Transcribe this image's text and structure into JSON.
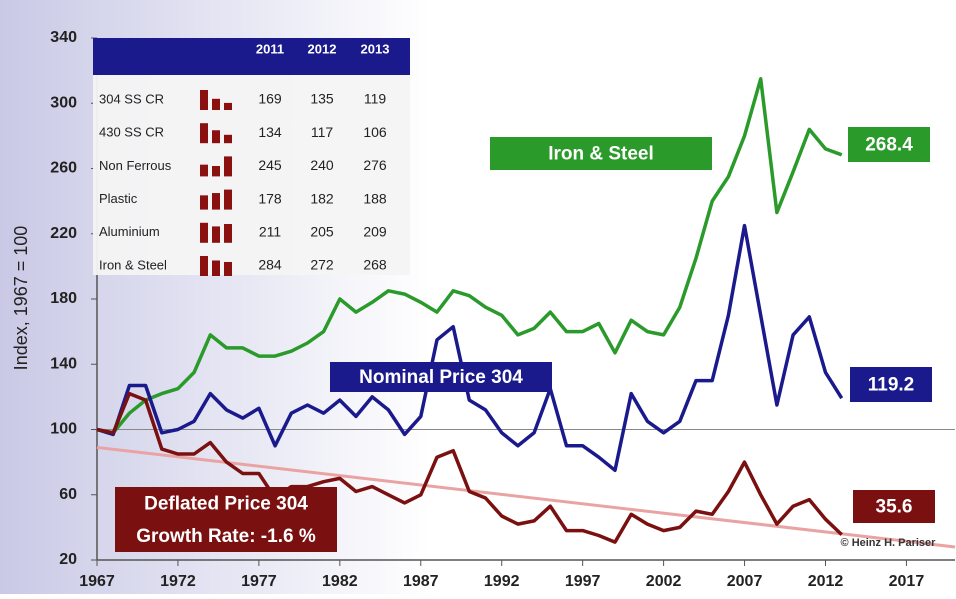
{
  "chart_data": {
    "type": "line",
    "ylabel": "Index, 1967 = 100",
    "xlim": [
      1967,
      2020
    ],
    "ylim": [
      20,
      340
    ],
    "xticks": [
      1967,
      1972,
      1977,
      1982,
      1987,
      1992,
      1997,
      2002,
      2007,
      2012,
      2017
    ],
    "yticks": [
      20,
      60,
      100,
      140,
      180,
      220,
      260,
      300,
      340
    ],
    "x": [
      1967,
      1968,
      1969,
      1970,
      1971,
      1972,
      1973,
      1974,
      1975,
      1976,
      1977,
      1978,
      1979,
      1980,
      1981,
      1982,
      1983,
      1984,
      1985,
      1986,
      1987,
      1988,
      1989,
      1990,
      1991,
      1992,
      1993,
      1994,
      1995,
      1996,
      1997,
      1998,
      1999,
      2000,
      2001,
      2002,
      2003,
      2004,
      2005,
      2006,
      2007,
      2008,
      2009,
      2010,
      2011,
      2012,
      2013
    ],
    "series": [
      {
        "name": "Iron & Steel",
        "color": "#2a9a2a",
        "values": [
          100,
          98,
          110,
          118,
          122,
          125,
          135,
          158,
          150,
          150,
          145,
          145,
          148,
          153,
          160,
          180,
          172,
          178,
          185,
          183,
          178,
          172,
          185,
          182,
          175,
          170,
          158,
          162,
          172,
          160,
          160,
          165,
          147,
          167,
          160,
          158,
          175,
          205,
          240,
          255,
          280,
          315,
          233,
          258,
          284,
          272,
          268.4
        ]
      },
      {
        "name": "Nominal Price 304",
        "color": "#1a1a8c",
        "values": [
          100,
          97,
          127,
          127,
          98,
          100,
          105,
          122,
          112,
          107,
          113,
          90,
          110,
          115,
          110,
          118,
          108,
          120,
          112,
          97,
          108,
          155,
          163,
          118,
          112,
          98,
          90,
          98,
          125,
          90,
          90,
          83,
          75,
          122,
          105,
          98,
          105,
          130,
          130,
          170,
          225,
          170,
          115,
          158,
          169,
          135,
          119.2
        ]
      },
      {
        "name": "Deflated Price 304",
        "color": "#7a1010",
        "values": [
          100,
          98,
          122,
          118,
          88,
          85,
          85,
          92,
          80,
          73,
          73,
          58,
          65,
          65,
          68,
          70,
          62,
          65,
          60,
          55,
          60,
          83,
          87,
          62,
          58,
          47,
          42,
          44,
          53,
          38,
          38,
          35,
          31,
          48,
          42,
          38,
          40,
          50,
          48,
          62,
          80,
          60,
          42,
          53,
          57,
          45,
          35.6
        ]
      }
    ],
    "trend": {
      "x": [
        1967,
        2020
      ],
      "values": [
        89,
        28
      ],
      "color": "#e9a3a3"
    },
    "annotation": "Growth Rate: -1.6 %",
    "credit": "© Heinz H. Pariser",
    "table": {
      "columns": [
        "2011",
        "2012",
        "2013"
      ],
      "bar_color": "#8b1010",
      "rows": [
        {
          "label": "304 SS CR",
          "values": [
            169,
            135,
            119
          ]
        },
        {
          "label": "430 SS CR",
          "values": [
            134,
            117,
            106
          ]
        },
        {
          "label": "Non Ferrous",
          "values": [
            245,
            240,
            276
          ]
        },
        {
          "label": "Plastic",
          "values": [
            178,
            182,
            188
          ]
        },
        {
          "label": "Aluminium",
          "values": [
            211,
            205,
            209
          ]
        },
        {
          "label": "Iron & Steel",
          "values": [
            284,
            272,
            268
          ]
        }
      ]
    }
  }
}
